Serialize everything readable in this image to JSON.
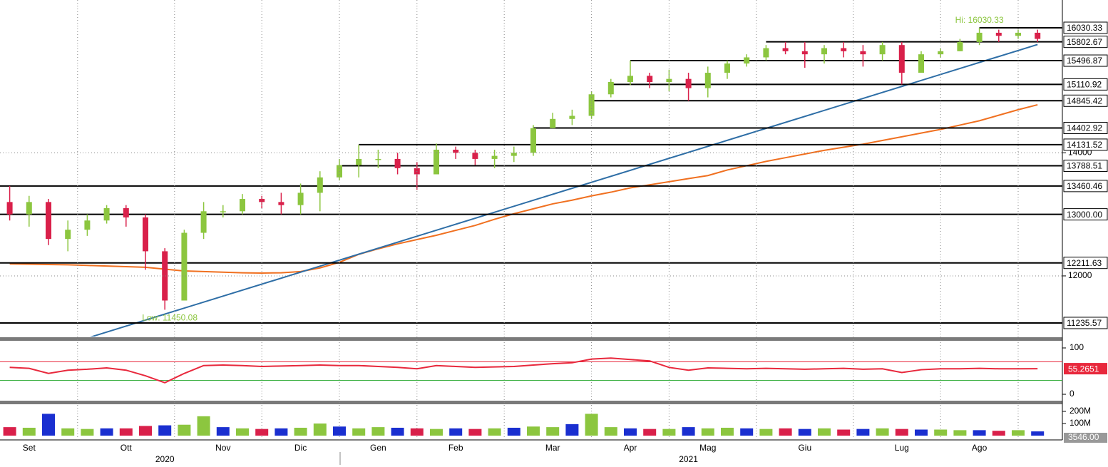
{
  "chart_data": {
    "type": "candlestick",
    "categories": [
      null,
      "Set",
      null,
      null,
      null,
      null,
      "Ott",
      null,
      null,
      null,
      null,
      "Nov",
      null,
      null,
      null,
      "Dic",
      null,
      null,
      null,
      "Gen",
      null,
      null,
      null,
      "Feb",
      null,
      null,
      null,
      null,
      "Mar",
      null,
      null,
      null,
      "Apr",
      null,
      null,
      null,
      "Mag",
      null,
      null,
      null,
      null,
      "Giu",
      null,
      null,
      null,
      null,
      "Lug",
      null,
      null,
      null,
      "Ago",
      null,
      null,
      null
    ],
    "group_labels": [
      null,
      null,
      null,
      null,
      null,
      null,
      null,
      null,
      "2020",
      null,
      null,
      null,
      null,
      null,
      null,
      null,
      null,
      null,
      null,
      null,
      null,
      null,
      null,
      null,
      null,
      null,
      null,
      null,
      null,
      null,
      null,
      null,
      null,
      null,
      null,
      "2021",
      null,
      null,
      null,
      null,
      null,
      null,
      null,
      null,
      null,
      null,
      null,
      null,
      null,
      null,
      null,
      null,
      null,
      null
    ],
    "open": [
      13200,
      13000,
      13200,
      12600,
      12750,
      12900,
      13100,
      12950,
      12400,
      11600,
      12700,
      13050,
      13050,
      13250,
      13200,
      13150,
      13350,
      13600,
      13800,
      13900,
      13900,
      13750,
      13650,
      14050,
      14000,
      13900,
      13950,
      14000,
      14400,
      14550,
      14600,
      14950,
      15150,
      15250,
      15150,
      15200,
      15050,
      15300,
      15450,
      15550,
      15700,
      15650,
      15600,
      15700,
      15650,
      15600,
      15750,
      15300,
      15600,
      15650,
      15800,
      15950,
      15900,
      15950
    ],
    "high": [
      13460,
      13300,
      13250,
      12900,
      13000,
      13150,
      13150,
      13000,
      12450,
      12750,
      13200,
      13150,
      13330,
      13300,
      13350,
      13500,
      13700,
      13900,
      14131,
      14050,
      14000,
      13850,
      14150,
      14100,
      14050,
      14050,
      14100,
      14450,
      14650,
      14700,
      15000,
      15200,
      15500,
      15300,
      15350,
      15300,
      15400,
      15500,
      15600,
      15750,
      15800,
      15800,
      15750,
      15800,
      15750,
      15800,
      15800,
      15650,
      15700,
      15850,
      16030.33,
      16000,
      16000,
      16000
    ],
    "low": [
      12900,
      12800,
      12500,
      12400,
      12650,
      12850,
      12800,
      12100,
      11450,
      11600,
      12600,
      12950,
      13000,
      13100,
      13000,
      13000,
      13050,
      13550,
      13600,
      13750,
      13650,
      13400,
      13650,
      13900,
      13800,
      13750,
      13850,
      13950,
      14400,
      14450,
      14550,
      14900,
      15100,
      15050,
      15000,
      14845,
      14900,
      15200,
      15400,
      15500,
      15600,
      15380,
      15450,
      15550,
      15400,
      15500,
      15110,
      15300,
      15550,
      15650,
      15750,
      15800,
      15850,
      15800
    ],
    "close": [
      13000,
      13200,
      12600,
      12750,
      12900,
      13100,
      12950,
      12400,
      11600,
      12700,
      13050,
      13050,
      13250,
      13200,
      13150,
      13350,
      13600,
      13800,
      13900,
      13900,
      13750,
      13650,
      14050,
      14000,
      13900,
      13950,
      14000,
      14400,
      14550,
      14600,
      14950,
      15150,
      15250,
      15150,
      15200,
      15050,
      15300,
      15450,
      15550,
      15700,
      15650,
      15600,
      15700,
      15650,
      15600,
      15750,
      15300,
      15600,
      15650,
      15800,
      15950,
      15900,
      15950,
      15850
    ],
    "up_color": "#8cc63f",
    "down_color": "#d9204a",
    "ylim": [
      11015,
      16482
    ],
    "yticks": [
      12000,
      14000
    ],
    "grid": true,
    "levels": [
      16030.33,
      15802.67,
      15496.87,
      15110.92,
      14845.42,
      14402.92,
      14131.52,
      13788.51,
      13460.46,
      {
        "value": 13000,
        "label": "13000.00"
      },
      12211.63,
      11235.57
    ],
    "level_color": "#000000",
    "moving_average": {
      "color": "#f07020",
      "values": [
        12195,
        12190,
        12185,
        12180,
        12170,
        12160,
        12150,
        12140,
        12110,
        12080,
        12070,
        12060,
        12050,
        12046,
        12050,
        12070,
        12130,
        12220,
        12350,
        12440,
        12520,
        12590,
        12660,
        12740,
        12820,
        12920,
        13010,
        13090,
        13170,
        13230,
        13300,
        13360,
        13430,
        13480,
        13530,
        13580,
        13630,
        13720,
        13790,
        13860,
        13920,
        13980,
        14040,
        14090,
        14140,
        14200,
        14260,
        14320,
        14380,
        14450,
        14520,
        14610,
        14700,
        14780
      ]
    },
    "trendline": {
      "color": "#2e6ea6",
      "points": [
        [
          4,
          10990
        ],
        [
          53,
          15759
        ]
      ]
    },
    "annotations": {
      "high": "Hi: 16030.33",
      "low": "Low: 11450.08",
      "color": "#8cc63f"
    },
    "rsi": {
      "color": "#e8283c",
      "ylim": [
        -13.8,
        112.3
      ],
      "yticks": [
        0,
        100
      ],
      "overbought": 70,
      "oversold": 30,
      "values": [
        58,
        56,
        45,
        52,
        54,
        57,
        52,
        40,
        25,
        45,
        62,
        63,
        62,
        60,
        61,
        62,
        63,
        62,
        62,
        60,
        58,
        55,
        62,
        60,
        58,
        59,
        60,
        63,
        66,
        68,
        76,
        78,
        75,
        72,
        58,
        52,
        57,
        56,
        55,
        56,
        55,
        54,
        55,
        56,
        54,
        55,
        47,
        53,
        55,
        55,
        56,
        55,
        55,
        55.2651
      ]
    },
    "volume": {
      "color": "#1a2fd0",
      "ylim": [
        -17600000,
        253000000
      ],
      "yticks": [
        {
          "value": 100000000,
          "label": "100M"
        },
        {
          "value": 200000000,
          "label": "200M"
        }
      ],
      "values": [
        70000000,
        65000000,
        180000000,
        60000000,
        55000000,
        60000000,
        60000000,
        80000000,
        85000000,
        90000000,
        160000000,
        70000000,
        60000000,
        55000000,
        60000000,
        65000000,
        100000000,
        75000000,
        60000000,
        70000000,
        65000000,
        60000000,
        55000000,
        60000000,
        55000000,
        60000000,
        65000000,
        75000000,
        70000000,
        95000000,
        180000000,
        70000000,
        60000000,
        55000000,
        55000000,
        70000000,
        60000000,
        65000000,
        60000000,
        55000000,
        60000000,
        55000000,
        60000000,
        50000000,
        55000000,
        60000000,
        55000000,
        50000000,
        50000000,
        45000000,
        45000000,
        40000000,
        45000000,
        35000000
      ],
      "last_label": "3546.00"
    }
  }
}
